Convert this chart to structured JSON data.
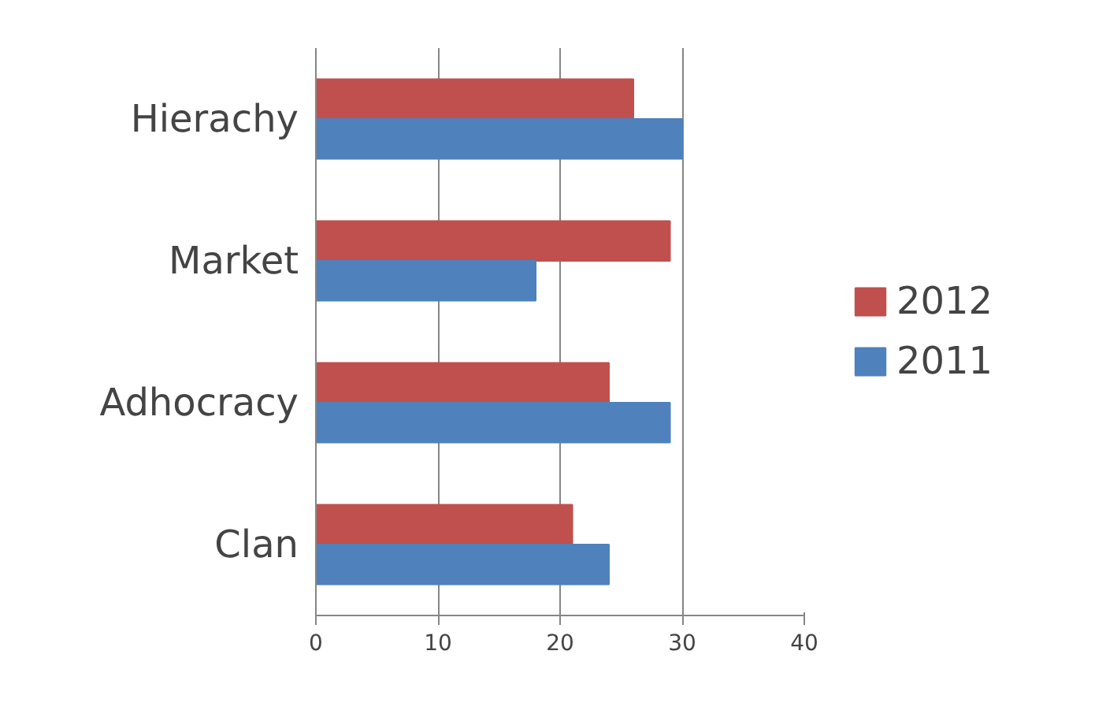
{
  "chart_data": {
    "type": "bar",
    "orientation": "horizontal",
    "categories": [
      "Hierachy",
      "Market",
      "Adhocracy",
      "Clan"
    ],
    "series": [
      {
        "name": "2012",
        "color": "#c0504d",
        "values": [
          26,
          29,
          24,
          21
        ]
      },
      {
        "name": "2011",
        "color": "#4f81bd",
        "values": [
          30,
          18,
          29,
          24
        ]
      }
    ],
    "xlim": [
      0,
      40
    ],
    "xticks": [
      0,
      10,
      20,
      30,
      40
    ],
    "grid": "x",
    "legend": "right"
  }
}
